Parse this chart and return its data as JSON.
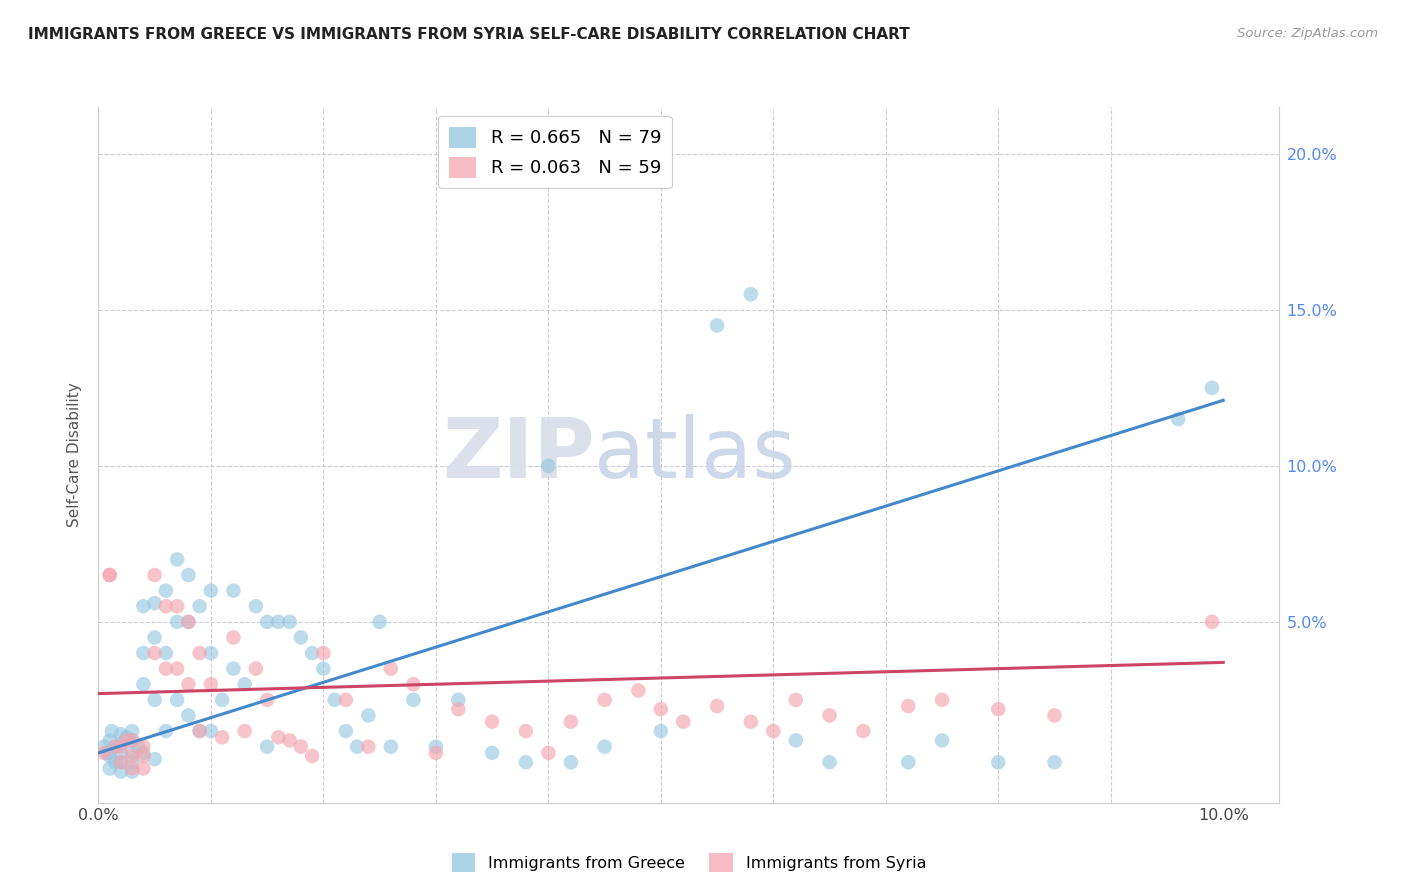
{
  "title": "IMMIGRANTS FROM GREECE VS IMMIGRANTS FROM SYRIA SELF-CARE DISABILITY CORRELATION CHART",
  "source": "Source: ZipAtlas.com",
  "ylabel": "Self-Care Disability",
  "xlim": [
    0.0,
    0.105
  ],
  "ylim": [
    -0.008,
    0.215
  ],
  "yticks": [
    0.0,
    0.05,
    0.1,
    0.15,
    0.2
  ],
  "ytick_labels": [
    "",
    "5.0%",
    "10.0%",
    "15.0%",
    "20.0%"
  ],
  "greece_color": "#92c5de",
  "syria_color": "#f4a5b0",
  "greece_R": 0.665,
  "greece_N": 79,
  "syria_R": 0.063,
  "syria_N": 59,
  "greece_line_color": "#4488cc",
  "syria_line_color": "#cc4466",
  "greece_line_x0": 0.0,
  "greece_line_y0": 0.008,
  "greece_line_x1": 0.1,
  "greece_line_y1": 0.121,
  "syria_line_x0": 0.0,
  "syria_line_y0": 0.027,
  "syria_line_x1": 0.1,
  "syria_line_y1": 0.037,
  "watermark_left": "ZIP",
  "watermark_right": "atlas",
  "greece_x": [
    0.0005,
    0.0008,
    0.001,
    0.001,
    0.001,
    0.0012,
    0.0015,
    0.0015,
    0.002,
    0.002,
    0.002,
    0.002,
    0.002,
    0.0025,
    0.003,
    0.003,
    0.003,
    0.003,
    0.003,
    0.0035,
    0.004,
    0.004,
    0.004,
    0.004,
    0.005,
    0.005,
    0.005,
    0.005,
    0.006,
    0.006,
    0.006,
    0.007,
    0.007,
    0.007,
    0.008,
    0.008,
    0.008,
    0.009,
    0.009,
    0.01,
    0.01,
    0.01,
    0.011,
    0.012,
    0.012,
    0.013,
    0.014,
    0.015,
    0.015,
    0.016,
    0.017,
    0.018,
    0.019,
    0.02,
    0.021,
    0.022,
    0.023,
    0.024,
    0.025,
    0.026,
    0.028,
    0.03,
    0.032,
    0.035,
    0.038,
    0.04,
    0.042,
    0.045,
    0.05,
    0.055,
    0.058,
    0.062,
    0.065,
    0.072,
    0.075,
    0.08,
    0.085,
    0.096,
    0.099
  ],
  "greece_y": [
    0.01,
    0.008,
    0.012,
    0.007,
    0.003,
    0.015,
    0.01,
    0.005,
    0.014,
    0.011,
    0.008,
    0.005,
    0.002,
    0.013,
    0.015,
    0.012,
    0.008,
    0.005,
    0.002,
    0.01,
    0.055,
    0.04,
    0.03,
    0.008,
    0.056,
    0.045,
    0.025,
    0.006,
    0.06,
    0.04,
    0.015,
    0.07,
    0.05,
    0.025,
    0.065,
    0.05,
    0.02,
    0.055,
    0.015,
    0.06,
    0.04,
    0.015,
    0.025,
    0.06,
    0.035,
    0.03,
    0.055,
    0.05,
    0.01,
    0.05,
    0.05,
    0.045,
    0.04,
    0.035,
    0.025,
    0.015,
    0.01,
    0.02,
    0.05,
    0.01,
    0.025,
    0.01,
    0.025,
    0.008,
    0.005,
    0.1,
    0.005,
    0.01,
    0.015,
    0.145,
    0.155,
    0.012,
    0.005,
    0.005,
    0.012,
    0.005,
    0.005,
    0.115,
    0.125
  ],
  "syria_x": [
    0.0005,
    0.001,
    0.001,
    0.0015,
    0.002,
    0.002,
    0.0025,
    0.003,
    0.003,
    0.003,
    0.004,
    0.004,
    0.004,
    0.005,
    0.005,
    0.006,
    0.006,
    0.007,
    0.007,
    0.008,
    0.008,
    0.009,
    0.009,
    0.01,
    0.011,
    0.012,
    0.013,
    0.014,
    0.015,
    0.016,
    0.017,
    0.018,
    0.019,
    0.02,
    0.022,
    0.024,
    0.026,
    0.028,
    0.03,
    0.032,
    0.035,
    0.038,
    0.04,
    0.042,
    0.045,
    0.048,
    0.05,
    0.052,
    0.055,
    0.058,
    0.06,
    0.062,
    0.065,
    0.068,
    0.072,
    0.075,
    0.08,
    0.085,
    0.099
  ],
  "syria_y": [
    0.008,
    0.065,
    0.065,
    0.01,
    0.01,
    0.005,
    0.012,
    0.012,
    0.007,
    0.003,
    0.01,
    0.007,
    0.003,
    0.065,
    0.04,
    0.055,
    0.035,
    0.055,
    0.035,
    0.05,
    0.03,
    0.04,
    0.015,
    0.03,
    0.013,
    0.045,
    0.015,
    0.035,
    0.025,
    0.013,
    0.012,
    0.01,
    0.007,
    0.04,
    0.025,
    0.01,
    0.035,
    0.03,
    0.008,
    0.022,
    0.018,
    0.015,
    0.008,
    0.018,
    0.025,
    0.028,
    0.022,
    0.018,
    0.023,
    0.018,
    0.015,
    0.025,
    0.02,
    0.015,
    0.023,
    0.025,
    0.022,
    0.02,
    0.05
  ]
}
